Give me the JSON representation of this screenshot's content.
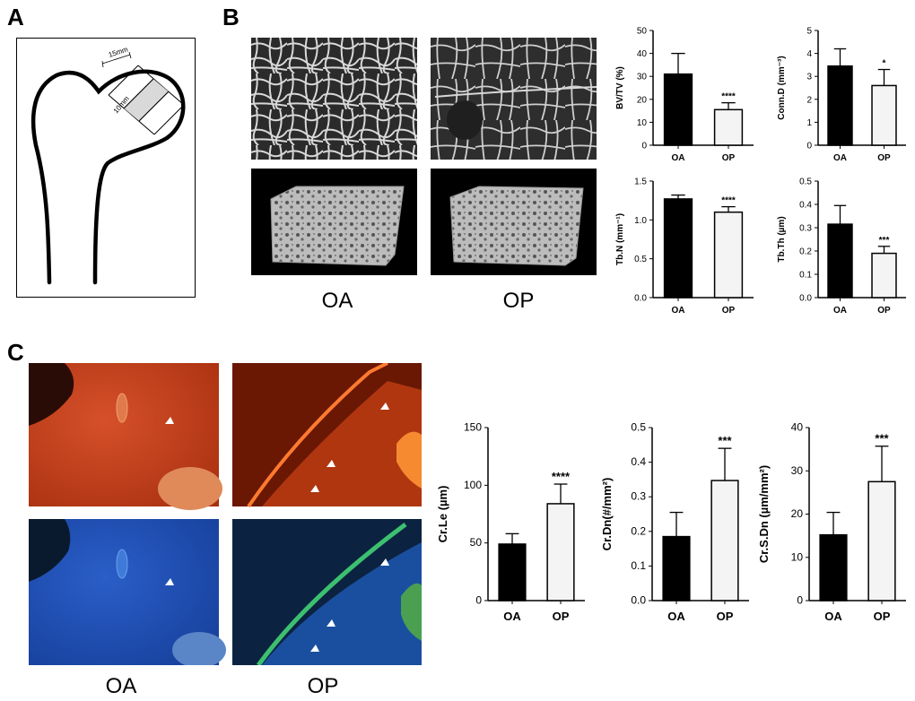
{
  "panels": {
    "a": "A",
    "b": "B",
    "c": "C"
  },
  "diagram": {
    "dim_top": "15mm",
    "dim_side": "10mm"
  },
  "panel_b": {
    "oa_label": "OA",
    "op_label": "OP"
  },
  "panel_c": {
    "oa_label": "OA",
    "op_label": "OP"
  },
  "colors": {
    "oa_bar": "#000000",
    "op_bar": "#f4f4f4",
    "stain_red": "#c8401c",
    "stain_blue": "#1f4fb8"
  },
  "chart_data": [
    {
      "id": "bvtv",
      "type": "bar",
      "categories": [
        "OA",
        "OP"
      ],
      "values": [
        31,
        15.5
      ],
      "errors": [
        9,
        3
      ],
      "ylabel": "BV/TV (%)",
      "ylim": [
        0,
        50
      ],
      "yticks": [
        0,
        10,
        20,
        30,
        40,
        50
      ],
      "tick_labels": [
        "0",
        "10",
        "20",
        "30",
        "40",
        "50"
      ],
      "significance": "****"
    },
    {
      "id": "connd",
      "type": "bar",
      "categories": [
        "OA",
        "OP"
      ],
      "values": [
        3.45,
        2.6
      ],
      "errors": [
        0.75,
        0.7
      ],
      "ylabel": "Conn.D (mm⁻³)",
      "ylim": [
        0,
        5
      ],
      "yticks": [
        0,
        1,
        2,
        3,
        4,
        5
      ],
      "tick_labels": [
        "0",
        "1",
        "2",
        "3",
        "4",
        "5"
      ],
      "significance": "*"
    },
    {
      "id": "tbn",
      "type": "bar",
      "categories": [
        "OA",
        "OP"
      ],
      "values": [
        1.27,
        1.1
      ],
      "errors": [
        0.05,
        0.07
      ],
      "ylabel": "Tb.N (mm⁻¹)",
      "ylim": [
        0,
        1.5
      ],
      "yticks": [
        0,
        0.5,
        1.0,
        1.5
      ],
      "tick_labels": [
        "0.0",
        "0.5",
        "1.0",
        "1.5"
      ],
      "significance": "****"
    },
    {
      "id": "tbth",
      "type": "bar",
      "categories": [
        "OA",
        "OP"
      ],
      "values": [
        0.315,
        0.19
      ],
      "errors": [
        0.08,
        0.03
      ],
      "ylabel": "Tb.Th (µm)",
      "ylim": [
        0,
        0.5
      ],
      "yticks": [
        0,
        0.1,
        0.2,
        0.3,
        0.4,
        0.5
      ],
      "tick_labels": [
        "0.0",
        "0.1",
        "0.2",
        "0.3",
        "0.4",
        "0.5"
      ],
      "significance": "***"
    },
    {
      "id": "crle",
      "type": "bar",
      "categories": [
        "OA",
        "OP"
      ],
      "values": [
        49,
        84
      ],
      "errors": [
        9,
        17
      ],
      "ylabel": "Cr.Le (µm)",
      "ylim": [
        0,
        150
      ],
      "yticks": [
        0,
        50,
        100,
        150
      ],
      "tick_labels": [
        "0",
        "50",
        "100",
        "150"
      ],
      "significance": "****"
    },
    {
      "id": "crdn",
      "type": "bar",
      "categories": [
        "OA",
        "OP"
      ],
      "values": [
        0.185,
        0.347
      ],
      "errors": [
        0.07,
        0.093
      ],
      "ylabel": "Cr.Dn(#/mm²)",
      "ylim": [
        0,
        0.5
      ],
      "yticks": [
        0,
        0.1,
        0.2,
        0.3,
        0.4,
        0.5
      ],
      "tick_labels": [
        "0.0",
        "0.1",
        "0.2",
        "0.3",
        "0.4",
        "0.5"
      ],
      "significance": "***"
    },
    {
      "id": "crsdn",
      "type": "bar",
      "categories": [
        "OA",
        "OP"
      ],
      "values": [
        15.2,
        27.5
      ],
      "errors": [
        5.2,
        8.2
      ],
      "ylabel": "Cr.S.Dn (µm/mm²)",
      "ylim": [
        0,
        40
      ],
      "yticks": [
        0,
        10,
        20,
        30,
        40
      ],
      "tick_labels": [
        "0",
        "10",
        "20",
        "30",
        "40"
      ],
      "significance": "***"
    }
  ]
}
